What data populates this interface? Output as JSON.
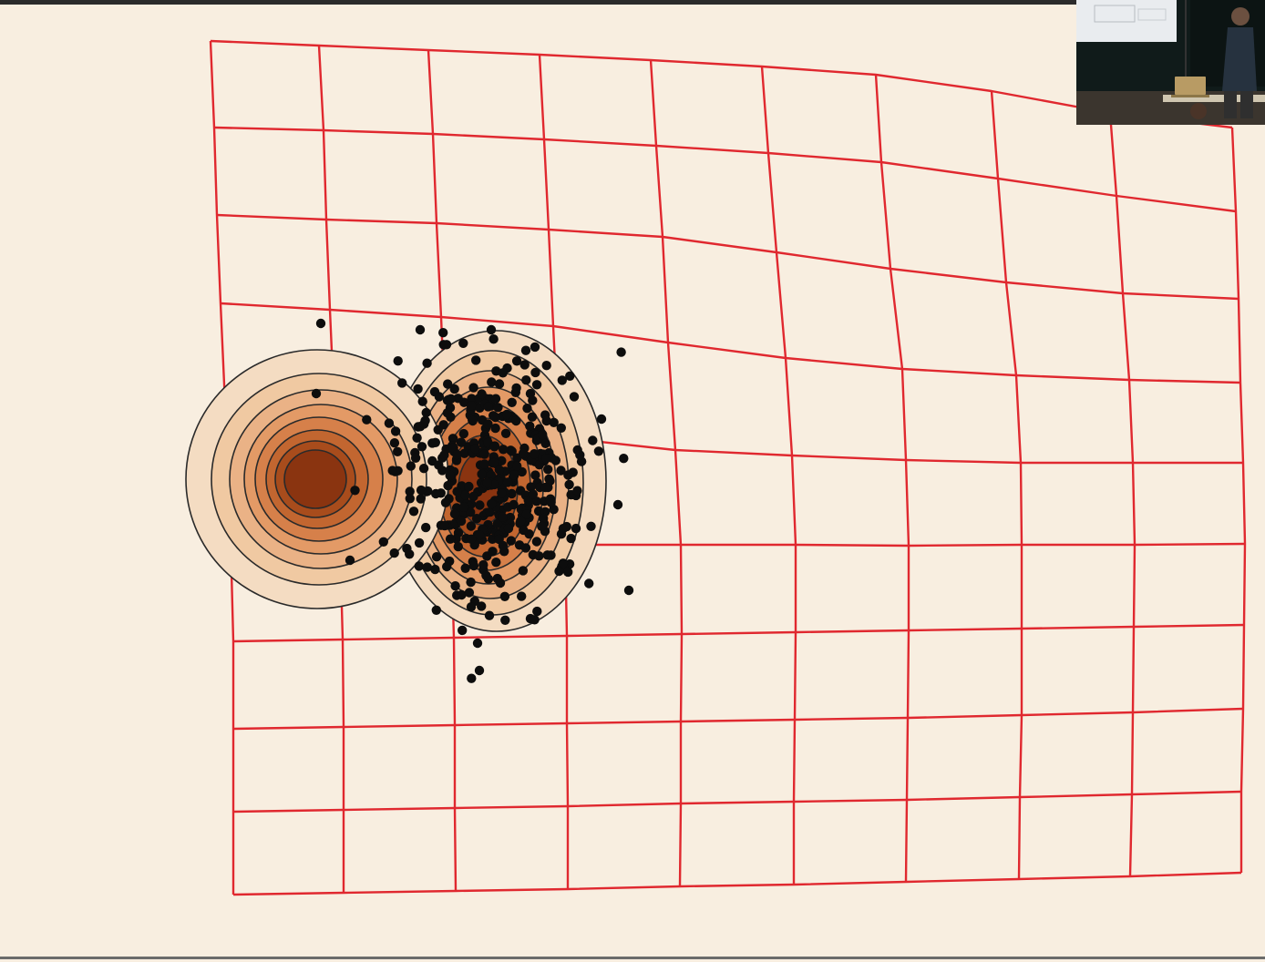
{
  "slide": {
    "background_color": "#f8eee0",
    "grid_color": "#e0282f",
    "contour_colors": [
      "#f4dcc2",
      "#f0c9a2",
      "#eab286",
      "#e39a66",
      "#d6804a",
      "#c26630",
      "#a84c1c",
      "#8a3410"
    ],
    "contour_stroke_color": "#2a2a2a",
    "sample_point_color": "#0d0d0d"
  },
  "webcam": {
    "icons": [
      "lecturer-figure",
      "laptop-icon",
      "chalkboard",
      "projector-screen"
    ]
  }
}
